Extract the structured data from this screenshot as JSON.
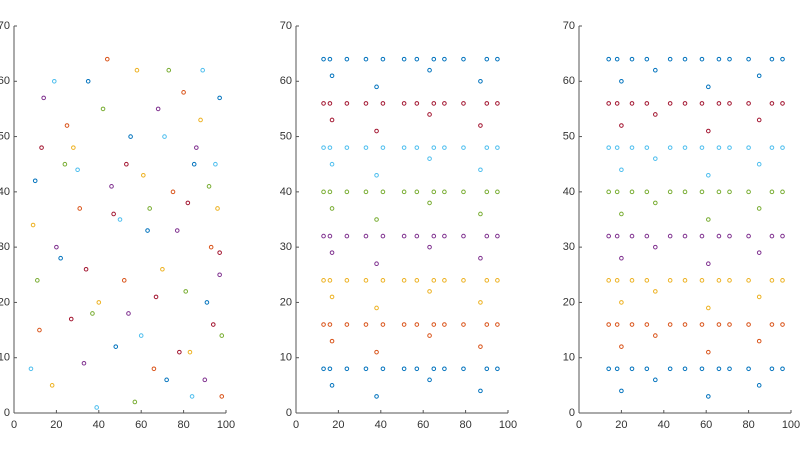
{
  "chart_data": [
    {
      "type": "scatter",
      "xlim": [
        0,
        100
      ],
      "ylim": [
        0,
        70
      ],
      "xticks": [
        0,
        20,
        40,
        60,
        80,
        100
      ],
      "yticks": [
        0,
        10,
        20,
        30,
        40,
        50,
        60,
        70
      ],
      "series": [
        {
          "color": "#0072BD",
          "x": [
            10,
            22,
            35,
            48,
            55,
            63,
            72,
            85,
            91,
            97
          ],
          "values": [
            42,
            28,
            60,
            12,
            50,
            33,
            6,
            45,
            20,
            57
          ]
        },
        {
          "color": "#D95319",
          "x": [
            12,
            25,
            31,
            44,
            52,
            66,
            75,
            80,
            93,
            98
          ],
          "values": [
            15,
            52,
            37,
            64,
            24,
            8,
            40,
            58,
            30,
            3
          ]
        },
        {
          "color": "#EDB120",
          "x": [
            9,
            18,
            28,
            40,
            58,
            61,
            70,
            83,
            88,
            96
          ],
          "values": [
            34,
            5,
            48,
            20,
            62,
            43,
            26,
            11,
            53,
            37
          ]
        },
        {
          "color": "#7E2F8E",
          "x": [
            14,
            20,
            33,
            46,
            54,
            68,
            77,
            86,
            90,
            97
          ],
          "values": [
            57,
            30,
            9,
            41,
            18,
            55,
            33,
            48,
            6,
            25
          ]
        },
        {
          "color": "#77AC30",
          "x": [
            11,
            24,
            37,
            42,
            57,
            64,
            73,
            81,
            92,
            98
          ],
          "values": [
            24,
            45,
            18,
            55,
            2,
            37,
            62,
            22,
            41,
            14
          ]
        },
        {
          "color": "#4DBEEE",
          "x": [
            8,
            19,
            30,
            39,
            50,
            60,
            71,
            84,
            89,
            95
          ],
          "values": [
            8,
            60,
            44,
            1,
            35,
            14,
            50,
            3,
            62,
            45
          ]
        },
        {
          "color": "#A2142F",
          "x": [
            13,
            27,
            34,
            47,
            53,
            67,
            78,
            82,
            94,
            97
          ],
          "values": [
            48,
            17,
            26,
            36,
            45,
            21,
            11,
            38,
            16,
            29
          ]
        }
      ]
    },
    {
      "type": "scatter",
      "xlim": [
        0,
        100
      ],
      "ylim": [
        0,
        70
      ],
      "xticks": [
        0,
        20,
        40,
        60,
        80,
        100
      ],
      "yticks": [
        0,
        10,
        20,
        30,
        40,
        50,
        60,
        70
      ],
      "series": [
        {
          "color": "#0072BD",
          "x": [
            13,
            16,
            24,
            33,
            41,
            51,
            57,
            65,
            70,
            79,
            90,
            95,
            17,
            38,
            63,
            87
          ],
          "values": [
            64,
            64,
            64,
            64,
            64,
            64,
            64,
            64,
            64,
            64,
            64,
            64,
            61,
            59,
            62,
            60
          ]
        },
        {
          "color": "#A2142F",
          "x": [
            13,
            16,
            24,
            33,
            41,
            51,
            57,
            65,
            70,
            79,
            90,
            95,
            17,
            38,
            63,
            87
          ],
          "values": [
            56,
            56,
            56,
            56,
            56,
            56,
            56,
            56,
            56,
            56,
            56,
            56,
            53,
            51,
            54,
            52
          ]
        },
        {
          "color": "#4DBEEE",
          "x": [
            13,
            16,
            24,
            33,
            41,
            51,
            57,
            65,
            70,
            79,
            90,
            95,
            17,
            38,
            63,
            87
          ],
          "values": [
            48,
            48,
            48,
            48,
            48,
            48,
            48,
            48,
            48,
            48,
            48,
            48,
            45,
            43,
            46,
            44
          ]
        },
        {
          "color": "#77AC30",
          "x": [
            13,
            16,
            24,
            33,
            41,
            51,
            57,
            65,
            70,
            79,
            90,
            95,
            17,
            38,
            63,
            87
          ],
          "values": [
            40,
            40,
            40,
            40,
            40,
            40,
            40,
            40,
            40,
            40,
            40,
            40,
            37,
            35,
            38,
            36
          ]
        },
        {
          "color": "#7E2F8E",
          "x": [
            13,
            16,
            24,
            33,
            41,
            51,
            57,
            65,
            70,
            79,
            90,
            95,
            17,
            38,
            63,
            87
          ],
          "values": [
            32,
            32,
            32,
            32,
            32,
            32,
            32,
            32,
            32,
            32,
            32,
            32,
            29,
            27,
            30,
            28
          ]
        },
        {
          "color": "#EDB120",
          "x": [
            13,
            16,
            24,
            33,
            41,
            51,
            57,
            65,
            70,
            79,
            90,
            95,
            17,
            38,
            63,
            87
          ],
          "values": [
            24,
            24,
            24,
            24,
            24,
            24,
            24,
            24,
            24,
            24,
            24,
            24,
            21,
            19,
            22,
            20
          ]
        },
        {
          "color": "#D95319",
          "x": [
            13,
            16,
            24,
            33,
            41,
            51,
            57,
            65,
            70,
            79,
            90,
            95,
            17,
            38,
            63,
            87
          ],
          "values": [
            16,
            16,
            16,
            16,
            16,
            16,
            16,
            16,
            16,
            16,
            16,
            16,
            13,
            11,
            14,
            12
          ]
        },
        {
          "color": "#0072BD",
          "x": [
            13,
            16,
            24,
            33,
            41,
            51,
            57,
            65,
            70,
            79,
            90,
            95,
            17,
            38,
            63,
            87
          ],
          "values": [
            8,
            8,
            8,
            8,
            8,
            8,
            8,
            8,
            8,
            8,
            8,
            8,
            5,
            3,
            6,
            4
          ]
        }
      ]
    },
    {
      "type": "scatter",
      "xlim": [
        0,
        100
      ],
      "ylim": [
        0,
        70
      ],
      "xticks": [
        0,
        20,
        40,
        60,
        80,
        100
      ],
      "yticks": [
        0,
        10,
        20,
        30,
        40,
        50,
        60,
        70
      ],
      "series": [
        {
          "color": "#0072BD",
          "x": [
            14,
            18,
            25,
            32,
            43,
            50,
            58,
            66,
            71,
            80,
            91,
            96,
            20,
            36,
            61,
            85
          ],
          "values": [
            64,
            64,
            64,
            64,
            64,
            64,
            64,
            64,
            64,
            64,
            64,
            64,
            60,
            62,
            59,
            61
          ]
        },
        {
          "color": "#A2142F",
          "x": [
            14,
            18,
            25,
            32,
            43,
            50,
            58,
            66,
            71,
            80,
            91,
            96,
            20,
            36,
            61,
            85
          ],
          "values": [
            56,
            56,
            56,
            56,
            56,
            56,
            56,
            56,
            56,
            56,
            56,
            56,
            52,
            54,
            51,
            53
          ]
        },
        {
          "color": "#4DBEEE",
          "x": [
            14,
            18,
            25,
            32,
            43,
            50,
            58,
            66,
            71,
            80,
            91,
            96,
            20,
            36,
            61,
            85
          ],
          "values": [
            48,
            48,
            48,
            48,
            48,
            48,
            48,
            48,
            48,
            48,
            48,
            48,
            44,
            46,
            43,
            45
          ]
        },
        {
          "color": "#77AC30",
          "x": [
            14,
            18,
            25,
            32,
            43,
            50,
            58,
            66,
            71,
            80,
            91,
            96,
            20,
            36,
            61,
            85
          ],
          "values": [
            40,
            40,
            40,
            40,
            40,
            40,
            40,
            40,
            40,
            40,
            40,
            40,
            36,
            38,
            35,
            37
          ]
        },
        {
          "color": "#7E2F8E",
          "x": [
            14,
            18,
            25,
            32,
            43,
            50,
            58,
            66,
            71,
            80,
            91,
            96,
            20,
            36,
            61,
            85
          ],
          "values": [
            32,
            32,
            32,
            32,
            32,
            32,
            32,
            32,
            32,
            32,
            32,
            32,
            28,
            30,
            27,
            29
          ]
        },
        {
          "color": "#EDB120",
          "x": [
            14,
            18,
            25,
            32,
            43,
            50,
            58,
            66,
            71,
            80,
            91,
            96,
            20,
            36,
            61,
            85
          ],
          "values": [
            24,
            24,
            24,
            24,
            24,
            24,
            24,
            24,
            24,
            24,
            24,
            24,
            20,
            22,
            19,
            21
          ]
        },
        {
          "color": "#D95319",
          "x": [
            14,
            18,
            25,
            32,
            43,
            50,
            58,
            66,
            71,
            80,
            91,
            96,
            20,
            36,
            61,
            85
          ],
          "values": [
            16,
            16,
            16,
            16,
            16,
            16,
            16,
            16,
            16,
            16,
            16,
            16,
            12,
            14,
            11,
            13
          ]
        },
        {
          "color": "#0072BD",
          "x": [
            14,
            18,
            25,
            32,
            43,
            50,
            58,
            66,
            71,
            80,
            91,
            96,
            20,
            36,
            61,
            85
          ],
          "values": [
            8,
            8,
            8,
            8,
            8,
            8,
            8,
            8,
            8,
            8,
            8,
            8,
            4,
            6,
            3,
            5
          ]
        }
      ]
    }
  ]
}
